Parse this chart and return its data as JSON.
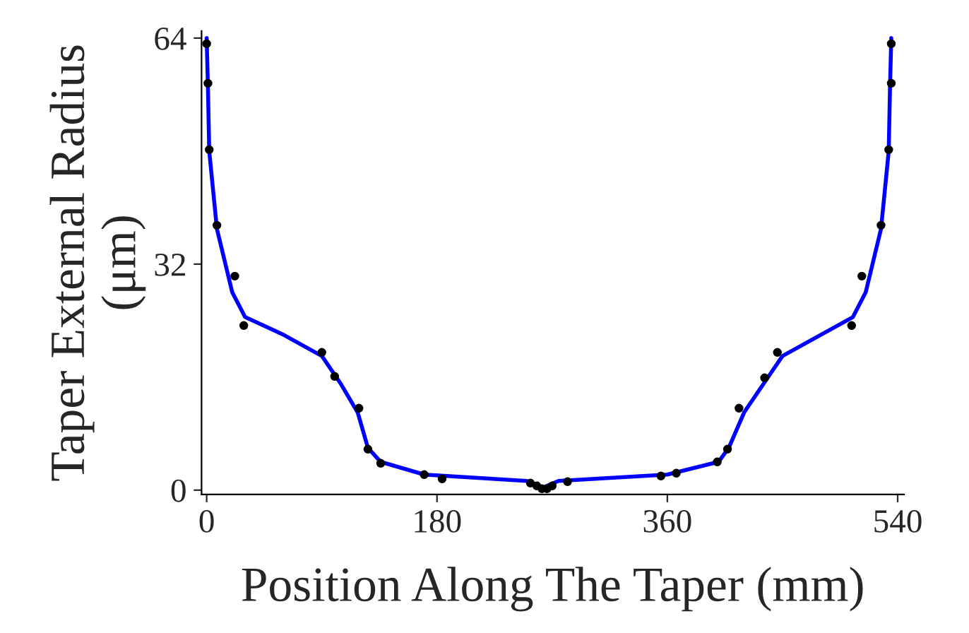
{
  "chart_data": {
    "type": "scatter",
    "xlabel": "Position Along The Taper (mm)",
    "ylabel": "Taper External Radius\n(μm)",
    "xlim": [
      -4,
      545
    ],
    "ylim": [
      -0.6,
      65
    ],
    "xticks": [
      0,
      180,
      360,
      540
    ],
    "yticks": [
      0,
      32,
      64
    ],
    "grid": false,
    "series": [
      {
        "type": "line",
        "color": "#0000ff",
        "marker": "none",
        "line_style": "solid",
        "x": [
          0,
          1,
          2,
          8,
          20,
          30,
          60,
          90,
          105,
          118,
          126,
          136,
          170,
          250,
          262,
          275,
          360,
          400,
          408,
          420,
          435,
          450,
          480,
          505,
          515,
          527,
          533,
          534,
          535
        ],
        "values": [
          64,
          57,
          48,
          37,
          28,
          24.5,
          22,
          19,
          15,
          11,
          6,
          4,
          2.2,
          1.3,
          0.3,
          1.3,
          2.2,
          4,
          6,
          11,
          15,
          19,
          22,
          24.5,
          28,
          37,
          48,
          57,
          64
        ]
      },
      {
        "color": "#000000",
        "marker": "circle",
        "x": [
          0,
          1,
          2,
          8,
          22,
          29,
          90,
          100,
          119,
          126,
          136,
          170,
          184,
          253,
          258,
          262,
          266,
          270,
          282,
          355,
          367,
          399,
          407,
          416,
          436,
          446,
          504,
          512,
          527,
          533,
          535,
          535
        ],
        "values": [
          63.2,
          57.6,
          48.2,
          37.5,
          30.3,
          23.3,
          19.5,
          16.1,
          11.6,
          5.8,
          3.8,
          2.2,
          1.6,
          1.0,
          0.6,
          0.2,
          0.2,
          0.6,
          1.2,
          2.0,
          2.4,
          4.0,
          5.8,
          11.6,
          15.9,
          19.5,
          23.3,
          30.3,
          37.5,
          48.2,
          57.6,
          63.2
        ]
      }
    ]
  }
}
